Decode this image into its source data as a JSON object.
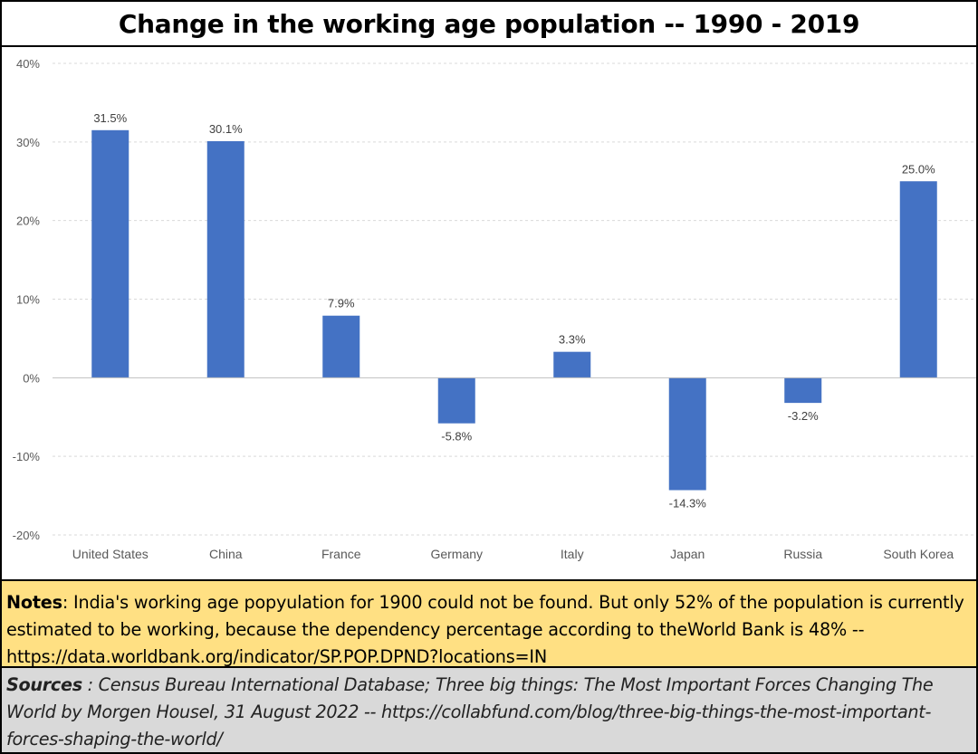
{
  "title": "Change in the working age population -- 1990 - 2019",
  "chart_data": {
    "type": "bar",
    "title": "Change in the working age population -- 1990 - 2019",
    "categories": [
      "United States",
      "China",
      "France",
      "Germany",
      "Italy",
      "Japan",
      "Russia",
      "South Korea"
    ],
    "values": [
      31.5,
      30.1,
      7.9,
      -5.8,
      3.3,
      -14.3,
      -3.2,
      25.0
    ],
    "data_labels": [
      "31.5%",
      "30.1%",
      "7.9%",
      "-5.8%",
      "3.3%",
      "-14.3%",
      "-3.2%",
      "25.0%"
    ],
    "yticks": [
      40,
      30,
      20,
      10,
      0,
      -10,
      -20
    ],
    "ytick_labels": [
      "40%",
      "30%",
      "20%",
      "10%",
      "0%",
      "-10%",
      "-20%"
    ],
    "ylim": [
      -20,
      40
    ],
    "grid": true,
    "bar_color": "#4472c4",
    "xlabel": "",
    "ylabel": ""
  },
  "notes": {
    "label": "Notes",
    "text": ": India's working age popyulation for 1900 could not be found.  But only 52% of the population is currently estimated to be working, because the dependency percentage according to theWorld Bank is 48% -- https://data.worldbank.org/indicator/SP.POP.DPND?locations=IN"
  },
  "sources": {
    "label": "Sources",
    "text": " : Census Bureau International Database;  Three big things: The Most Important Forces Changing The World by Morgen Housel, 31 August 2022  -- https://collabfund.com/blog/three-big-things-the-most-important-forces-shaping-the-world/"
  }
}
